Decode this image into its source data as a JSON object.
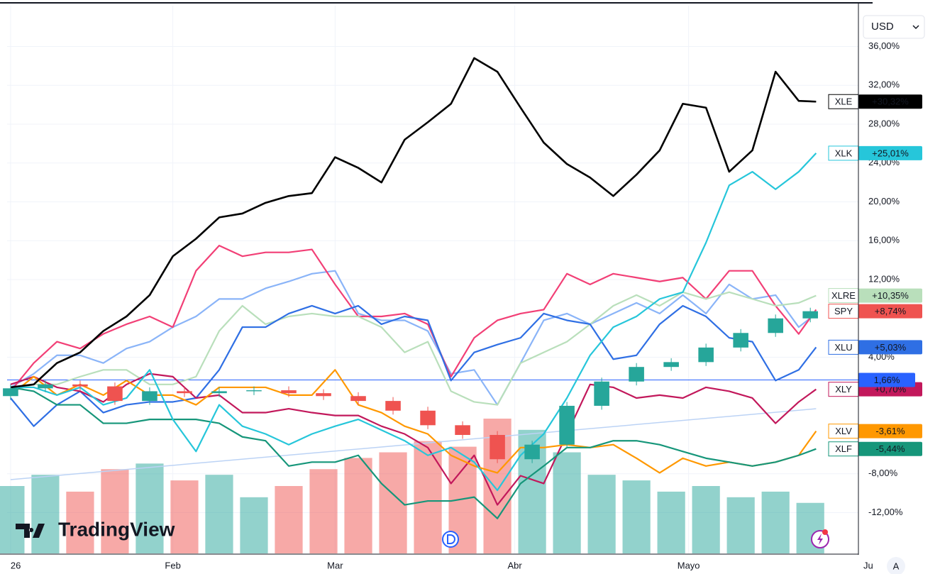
{
  "chart_data": {
    "type": "line",
    "x": [
      3,
      7,
      11,
      15,
      19,
      23,
      27,
      31,
      35,
      39,
      43,
      47,
      51,
      55,
      59,
      63,
      67,
      71,
      75,
      79,
      83,
      87,
      91,
      95,
      99,
      103,
      107,
      111,
      115,
      119,
      123,
      127,
      131,
      135,
      139,
      142
    ],
    "xlim": [
      2.4,
      149.3
    ],
    "ylim": [
      -16.2,
      40.2
    ],
    "xticks": [
      {
        "value": 3,
        "label": "26"
      },
      {
        "value": 31,
        "label": "Feb"
      },
      {
        "value": 59,
        "label": "Mar"
      },
      {
        "value": 90,
        "label": "Abr"
      },
      {
        "value": 120,
        "label": "Mayo"
      },
      {
        "value": 151,
        "label": "Ju"
      }
    ],
    "yticks": [
      {
        "value": 36,
        "label": "36,00%"
      },
      {
        "value": 32,
        "label": "32,00%"
      },
      {
        "value": 28,
        "label": "28,00%"
      },
      {
        "value": 24,
        "label": "24,00%"
      },
      {
        "value": 20,
        "label": "20,00%"
      },
      {
        "value": 16,
        "label": "16,00%"
      },
      {
        "value": 12,
        "label": "12,00%"
      },
      {
        "value": 4,
        "label": "4,00%"
      },
      {
        "value": -8,
        "label": "-8,00%"
      },
      {
        "value": -12,
        "label": "-12,00%"
      }
    ],
    "grid": true,
    "series": [
      {
        "color": "#8ab4f8",
        "values": [
          0.9,
          2.3,
          4.2,
          4.2,
          3.4,
          4.9,
          5.6,
          7.1,
          8.2,
          10.0,
          10.0,
          11.1,
          11.8,
          12.6,
          12.9,
          8.5,
          7.8,
          7.8,
          6.7,
          2.3,
          2.7,
          -0.9,
          3.4,
          7.8,
          8.5,
          7.4,
          8.5,
          9.6,
          8.5,
          10.4,
          8.5,
          11.5,
          10.0,
          10.4,
          7.1,
          8.5
        ]
      },
      {
        "color": "#f23f76",
        "values": [
          0.5,
          3.4,
          5.6,
          4.9,
          6.4,
          7.4,
          8.2,
          7.1,
          12.9,
          15.5,
          14.4,
          14.8,
          14.8,
          15.1,
          11.5,
          8.2,
          8.2,
          8.5,
          7.4,
          2.0,
          6.0,
          7.8,
          8.5,
          8.9,
          12.6,
          11.5,
          12.6,
          12.2,
          11.8,
          12.2,
          10.0,
          12.9,
          12.9,
          9.3,
          6.4,
          8.9
        ]
      },
      {
        "name": "XLRE",
        "color": "#b9dfbb",
        "values": [
          0.5,
          1.2,
          1.2,
          2.0,
          2.7,
          2.7,
          1.2,
          1.2,
          2.0,
          6.7,
          9.3,
          7.4,
          8.2,
          8.5,
          8.2,
          8.2,
          7.1,
          4.5,
          5.6,
          0.5,
          -0.6,
          -0.9,
          3.4,
          4.5,
          5.6,
          7.4,
          9.3,
          10.4,
          9.3,
          10.7,
          10.0,
          10.7,
          10.0,
          9.3,
          9.6,
          10.35
        ],
        "last_label": "+10,35%"
      },
      {
        "name": "XLU",
        "color": "#2f6fe4",
        "values": [
          -0.2,
          -3.1,
          -0.9,
          0.5,
          -1.7,
          -0.9,
          -0.6,
          -0.6,
          -0.2,
          2.7,
          7.1,
          7.1,
          8.5,
          9.3,
          8.5,
          9.3,
          7.4,
          8.2,
          7.8,
          1.6,
          4.5,
          5.3,
          6.0,
          8.5,
          7.8,
          7.4,
          3.8,
          4.2,
          7.4,
          9.3,
          8.2,
          6.0,
          5.6,
          1.6,
          2.7,
          5.03
        ],
        "last_label": "+5,03%"
      },
      {
        "name": "XLY",
        "color": "#c2185b",
        "values": [
          1.2,
          2.0,
          0.9,
          0.5,
          -0.6,
          1.2,
          2.3,
          2.0,
          -0.2,
          0.1,
          -1.7,
          -1.7,
          -1.3,
          -1.7,
          -2.0,
          -2.0,
          -3.1,
          -3.9,
          -5.3,
          -9.0,
          -6.1,
          -11.2,
          -8.2,
          -9.0,
          -3.9,
          1.2,
          0.9,
          -0.2,
          0.1,
          -0.2,
          0.9,
          0.5,
          -0.2,
          -2.8,
          -0.6,
          0.7
        ],
        "last_label": "+0,70%"
      },
      {
        "name": "XLV",
        "color": "#ff9800",
        "values": [
          0.1,
          2.0,
          0.1,
          1.2,
          0.1,
          1.6,
          0.1,
          0.1,
          -0.9,
          0.9,
          0.9,
          0.9,
          0.1,
          0.1,
          2.7,
          -0.9,
          -1.7,
          -3.1,
          -3.9,
          -6.1,
          -7.2,
          -7.9,
          -5.3,
          -5.3,
          -5.0,
          -5.3,
          -5.0,
          -6.4,
          -7.9,
          -6.4,
          -7.2,
          -6.8,
          -7.2,
          -6.8,
          -6.1,
          -3.61
        ],
        "last_label": "-3,61%"
      },
      {
        "name": "XLF",
        "color": "#16967a",
        "values": [
          0.9,
          0.5,
          -0.9,
          -0.9,
          -2.8,
          -2.8,
          -2.4,
          -2.4,
          -2.4,
          -2.8,
          -4.2,
          -4.6,
          -7.2,
          -6.8,
          -6.8,
          -6.1,
          -9.0,
          -11.2,
          -10.8,
          -10.8,
          -10.4,
          -12.6,
          -9.0,
          -7.2,
          -5.3,
          -5.3,
          -4.6,
          -4.6,
          -5.0,
          -5.7,
          -6.4,
          -6.8,
          -7.2,
          -6.8,
          -6.1,
          -5.44
        ],
        "last_label": "-5,44%"
      },
      {
        "name": "XLK",
        "color": "#26c6da",
        "values": [
          0.9,
          0.9,
          0.1,
          0.9,
          -0.9,
          -0.2,
          2.7,
          -2.4,
          -5.7,
          -0.9,
          -3.1,
          -3.9,
          -5.0,
          -3.9,
          -3.1,
          -2.4,
          -3.5,
          -4.6,
          -6.1,
          -5.3,
          -6.8,
          -9.7,
          -6.1,
          -3.9,
          -0.2,
          4.2,
          7.1,
          8.2,
          10.0,
          10.7,
          15.8,
          21.7,
          23.1,
          21.3,
          23.1,
          25.01
        ],
        "last_label": "+25,01%"
      },
      {
        "name": "XLE",
        "color": "#000000",
        "values": [
          0.9,
          1.2,
          3.4,
          4.5,
          6.7,
          8.2,
          10.4,
          14.4,
          16.2,
          18.4,
          18.8,
          19.9,
          20.6,
          20.9,
          24.6,
          23.5,
          22.0,
          26.4,
          28.2,
          30.1,
          34.8,
          33.4,
          29.7,
          26.1,
          23.9,
          22.5,
          20.6,
          22.8,
          25.3,
          30.1,
          29.7,
          23.1,
          25.3,
          33.4,
          30.4,
          30.32
        ],
        "last_label": "+30,32%"
      }
    ],
    "candles": {
      "name": "SPY",
      "up_color": "#26a69a",
      "down_color": "#ef5350",
      "last_label": "+8,74%",
      "x": [
        3,
        9,
        15,
        21,
        27,
        33,
        39,
        45,
        51,
        57,
        63,
        69,
        75,
        81,
        87,
        93,
        99,
        105,
        111,
        117,
        123,
        129,
        135,
        141
      ],
      "open": [
        0.0,
        0.8,
        1.2,
        1.0,
        -0.5,
        0.5,
        0.3,
        0.5,
        0.6,
        0.3,
        0.0,
        -0.5,
        -1.5,
        -3.0,
        -4.0,
        -6.5,
        -5.0,
        -1.0,
        1.5,
        3.0,
        3.5,
        5.0,
        6.5,
        8.0
      ],
      "high": [
        1.2,
        1.6,
        1.6,
        1.4,
        0.9,
        0.9,
        0.9,
        1.0,
        1.0,
        0.7,
        0.4,
        -0.1,
        -1.1,
        -2.6,
        -3.6,
        -4.6,
        -0.6,
        1.9,
        3.4,
        3.9,
        5.4,
        6.9,
        8.4,
        9.1
      ],
      "low": [
        -0.4,
        0.4,
        0.6,
        -0.9,
        -0.9,
        -0.1,
        -0.1,
        0.1,
        -0.1,
        -0.4,
        -0.9,
        -1.9,
        -3.4,
        -4.4,
        -6.9,
        -6.9,
        -5.4,
        -1.4,
        1.1,
        2.6,
        3.1,
        4.6,
        6.1,
        7.6
      ],
      "close": [
        0.8,
        1.2,
        1.0,
        -0.5,
        0.5,
        0.3,
        0.5,
        0.6,
        0.3,
        0.0,
        -0.5,
        -1.5,
        -3.0,
        -4.0,
        -6.5,
        -5.0,
        -1.0,
        1.5,
        3.0,
        3.5,
        5.0,
        6.5,
        8.0,
        8.74
      ],
      "volume": [
        60,
        70,
        55,
        75,
        80,
        65,
        70,
        50,
        60,
        75,
        85,
        90,
        100,
        95,
        120,
        110,
        90,
        70,
        65,
        55,
        60,
        50,
        55,
        45
      ]
    },
    "trend_line": {
      "color": "#bcd3f5",
      "x": [
        3,
        142
      ],
      "values": [
        -8.6,
        -1.3
      ]
    },
    "price_line": {
      "value": 1.66,
      "label": "1,66%",
      "color": "#2962ff"
    }
  },
  "ui": {
    "currency": "USD",
    "auto": "A",
    "logo": "TradingView"
  }
}
